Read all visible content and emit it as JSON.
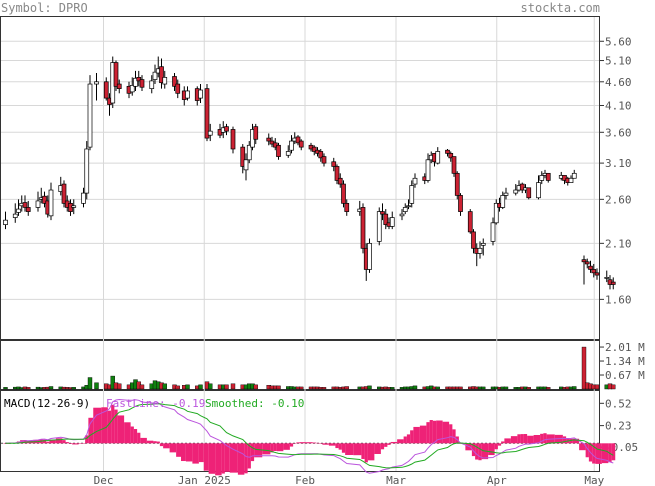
{
  "header": {
    "symbol_label": "Symbol: DPRO",
    "site": "stockta.com"
  },
  "colors": {
    "up": "#108010",
    "down": "#cc2233",
    "macd_hist": "#ee2277",
    "fastline": "#bb55dd",
    "smoothed": "#22aa22",
    "grid": "#d8d8d8"
  },
  "chart_data": [
    {
      "type": "candlestick",
      "title": "",
      "x_dates": [
        "2024-11-01",
        "2024-11-04",
        "2024-11-05",
        "2024-11-06",
        "2024-11-07",
        "2024-11-08",
        "2024-11-11",
        "2024-11-12",
        "2024-11-13",
        "2024-11-14",
        "2024-11-15",
        "2024-11-18",
        "2024-11-19",
        "2024-11-20",
        "2024-11-21",
        "2024-11-22",
        "2024-11-25",
        "2024-11-26",
        "2024-11-27",
        "2024-11-29",
        "2024-12-02",
        "2024-12-03",
        "2024-12-04",
        "2024-12-05",
        "2024-12-06",
        "2024-12-09",
        "2024-12-10",
        "2024-12-11",
        "2024-12-12",
        "2024-12-13",
        "2024-12-16",
        "2024-12-17",
        "2024-12-18",
        "2024-12-19",
        "2024-12-20",
        "2024-12-23",
        "2024-12-24",
        "2024-12-26",
        "2024-12-27",
        "2024-12-30",
        "2024-12-31",
        "2025-01-02",
        "2025-01-03",
        "2025-01-06",
        "2025-01-07",
        "2025-01-08",
        "2025-01-10",
        "2025-01-13",
        "2025-01-14",
        "2025-01-15",
        "2025-01-16",
        "2025-01-17",
        "2025-01-21",
        "2025-01-22",
        "2025-01-23",
        "2025-01-24",
        "2025-01-27",
        "2025-01-28",
        "2025-01-29",
        "2025-01-30",
        "2025-01-31",
        "2025-02-03",
        "2025-02-04",
        "2025-02-05",
        "2025-02-06",
        "2025-02-07",
        "2025-02-10",
        "2025-02-11",
        "2025-02-12",
        "2025-02-13",
        "2025-02-14",
        "2025-02-18",
        "2025-02-19",
        "2025-02-20",
        "2025-02-21",
        "2025-02-24",
        "2025-02-25",
        "2025-02-26",
        "2025-02-27",
        "2025-02-28",
        "2025-03-03",
        "2025-03-04",
        "2025-03-05",
        "2025-03-06",
        "2025-03-07",
        "2025-03-10",
        "2025-03-11",
        "2025-03-12",
        "2025-03-13",
        "2025-03-14",
        "2025-03-17",
        "2025-03-18",
        "2025-03-19",
        "2025-03-20",
        "2025-03-21",
        "2025-03-24",
        "2025-03-25",
        "2025-03-26",
        "2025-03-27",
        "2025-03-28",
        "2025-03-31",
        "2025-04-01",
        "2025-04-02",
        "2025-04-03",
        "2025-04-04",
        "2025-04-07",
        "2025-04-08",
        "2025-04-09",
        "2025-04-10",
        "2025-04-11",
        "2025-04-14",
        "2025-04-15",
        "2025-04-16",
        "2025-04-17",
        "2025-04-21",
        "2025-04-22",
        "2025-04-23",
        "2025-04-24",
        "2025-04-25",
        "2025-04-28",
        "2025-04-29",
        "2025-04-30",
        "2025-05-01",
        "2025-05-02",
        "2025-05-05",
        "2025-05-06",
        "2025-05-07"
      ],
      "x_tick_labels": [
        "Dec",
        "Jan 2025",
        "Feb",
        "Mar",
        "Apr",
        "May"
      ],
      "y_tick_labels": [
        "5.60",
        "5.10",
        "4.60",
        "4.10",
        "3.60",
        "3.10",
        "2.60",
        "2.10",
        "1.60"
      ],
      "y_scale": "log",
      "ylim": [
        1.32,
        6.3
      ],
      "grid": true,
      "close": [
        2.35,
        2.42,
        2.48,
        2.55,
        2.5,
        2.45,
        2.58,
        2.62,
        2.55,
        2.42,
        2.72,
        2.78,
        2.55,
        2.5,
        2.45,
        2.52,
        2.68,
        3.32,
        4.55,
        4.6,
        4.25,
        4.12,
        5.05,
        4.5,
        4.45,
        4.35,
        4.52,
        4.68,
        4.62,
        4.48,
        4.62,
        4.82,
        4.9,
        4.58,
        4.7,
        4.5,
        4.35,
        4.22,
        4.4,
        4.2,
        4.42,
        3.5,
        3.62,
        3.55,
        3.68,
        3.62,
        3.32,
        3.05,
        3.15,
        3.38,
        3.65,
        3.48,
        3.45,
        3.4,
        3.35,
        3.2,
        3.28,
        3.45,
        3.5,
        3.42,
        3.35,
        3.32,
        3.28,
        3.25,
        3.18,
        3.1,
        3.05,
        2.85,
        2.8,
        2.55,
        2.45,
        2.48,
        2.05,
        1.85,
        2.1,
        2.45,
        2.42,
        2.3,
        2.28,
        2.38,
        2.42,
        2.5,
        2.52,
        2.78,
        2.88,
        2.85,
        3.15,
        3.22,
        3.12,
        3.28,
        3.25,
        3.18,
        2.95,
        2.65,
        2.45,
        2.22,
        2.05,
        2.0,
        2.05,
        2.1,
        2.32,
        2.55,
        2.5,
        2.65,
        2.68,
        2.72,
        2.78,
        2.72,
        2.75,
        2.62,
        2.82,
        2.92,
        2.95,
        2.85,
        2.92,
        2.85,
        2.82,
        2.88,
        2.95,
        1.92,
        1.9,
        1.85,
        1.82,
        1.8,
        1.78,
        1.72,
        1.72
      ],
      "open": [
        2.3,
        2.38,
        2.44,
        2.52,
        2.56,
        2.5,
        2.5,
        2.6,
        2.64,
        2.58,
        2.4,
        2.7,
        2.8,
        2.58,
        2.55,
        2.5,
        2.55,
        2.68,
        3.35,
        4.55,
        4.6,
        4.25,
        4.15,
        5.05,
        4.55,
        4.5,
        4.38,
        4.5,
        4.7,
        4.65,
        4.45,
        4.65,
        4.8,
        4.95,
        4.55,
        4.72,
        4.55,
        4.4,
        4.25,
        4.45,
        4.25,
        4.45,
        3.55,
        3.65,
        3.6,
        3.7,
        3.65,
        3.35,
        3.0,
        3.15,
        3.35,
        3.7,
        3.5,
        3.45,
        3.42,
        3.38,
        3.22,
        3.3,
        3.45,
        3.52,
        3.45,
        3.38,
        3.35,
        3.3,
        3.28,
        3.2,
        3.12,
        3.05,
        2.88,
        2.8,
        2.55,
        2.45,
        2.5,
        2.05,
        1.85,
        2.12,
        2.45,
        2.42,
        2.32,
        2.28,
        2.4,
        2.45,
        2.52,
        2.55,
        2.8,
        2.9,
        2.85,
        3.15,
        3.25,
        3.1,
        3.3,
        3.25,
        3.2,
        2.95,
        2.65,
        2.45,
        2.22,
        2.05,
        2.0,
        2.08,
        2.12,
        2.32,
        2.55,
        2.5,
        2.65,
        2.68,
        2.72,
        2.8,
        2.72,
        2.75,
        2.62,
        2.85,
        2.92,
        2.95,
        2.88,
        2.92,
        2.88,
        2.82,
        2.88,
        1.94,
        1.92,
        1.88,
        1.85,
        1.82,
        1.78,
        1.76,
        1.74
      ],
      "high": [
        2.45,
        2.55,
        2.6,
        2.65,
        2.65,
        2.58,
        2.7,
        2.75,
        2.7,
        2.65,
        2.82,
        2.9,
        2.85,
        2.65,
        2.6,
        2.6,
        2.75,
        3.45,
        4.75,
        4.8,
        4.7,
        4.35,
        5.2,
        5.1,
        4.65,
        4.6,
        4.7,
        4.85,
        4.85,
        4.75,
        4.75,
        5.0,
        5.2,
        5.15,
        4.85,
        4.8,
        4.65,
        4.5,
        4.5,
        4.5,
        4.55,
        4.55,
        3.75,
        3.75,
        3.8,
        3.75,
        3.7,
        3.4,
        3.25,
        3.45,
        3.75,
        3.75,
        3.58,
        3.52,
        3.5,
        3.42,
        3.38,
        3.55,
        3.6,
        3.55,
        3.48,
        3.42,
        3.38,
        3.35,
        3.32,
        3.25,
        3.18,
        3.08,
        2.95,
        2.85,
        2.6,
        2.58,
        2.55,
        2.1,
        2.15,
        2.5,
        2.55,
        2.48,
        2.38,
        2.45,
        2.48,
        2.55,
        2.6,
        2.85,
        2.95,
        2.95,
        3.25,
        3.28,
        3.25,
        3.35,
        3.32,
        3.28,
        3.2,
        2.98,
        2.68,
        2.48,
        2.25,
        2.1,
        2.12,
        2.15,
        2.38,
        2.6,
        2.62,
        2.7,
        2.75,
        2.8,
        2.85,
        2.82,
        2.8,
        2.75,
        2.92,
        2.98,
        3.0,
        2.95,
        2.97,
        2.92,
        2.9,
        2.92,
        3.0,
        1.98,
        1.95,
        1.93,
        1.9,
        1.86,
        1.84,
        1.8,
        1.78
      ],
      "low": [
        2.25,
        2.32,
        2.4,
        2.45,
        2.45,
        2.4,
        2.45,
        2.55,
        2.5,
        2.38,
        2.35,
        2.65,
        2.5,
        2.45,
        2.4,
        2.42,
        2.5,
        2.6,
        3.3,
        4.2,
        4.2,
        3.9,
        4.05,
        4.4,
        4.35,
        4.25,
        4.3,
        4.4,
        4.5,
        4.4,
        4.35,
        4.55,
        4.7,
        4.45,
        4.45,
        4.4,
        4.25,
        4.1,
        4.2,
        4.1,
        4.15,
        3.45,
        3.45,
        3.5,
        3.5,
        3.55,
        3.25,
        2.95,
        2.85,
        3.1,
        3.3,
        3.4,
        3.38,
        3.35,
        3.3,
        3.15,
        3.18,
        3.25,
        3.4,
        3.38,
        3.3,
        3.28,
        3.22,
        3.2,
        3.12,
        3.05,
        2.98,
        2.8,
        2.75,
        2.5,
        2.4,
        2.4,
        2.0,
        1.75,
        1.82,
        2.08,
        2.35,
        2.25,
        2.25,
        2.25,
        2.35,
        2.42,
        2.48,
        2.5,
        2.75,
        2.8,
        2.82,
        3.1,
        3.05,
        3.08,
        3.2,
        3.12,
        2.9,
        2.6,
        2.4,
        2.2,
        2.0,
        1.88,
        1.95,
        1.98,
        2.08,
        2.3,
        2.45,
        2.48,
        2.6,
        2.65,
        2.7,
        2.68,
        2.68,
        2.6,
        2.6,
        2.8,
        2.88,
        2.82,
        2.85,
        2.8,
        2.78,
        2.82,
        2.88,
        1.72,
        1.86,
        1.82,
        1.78,
        1.76,
        1.74,
        1.68,
        1.68
      ]
    },
    {
      "type": "bar",
      "title": "",
      "y_tick_labels": [
        "2.01 M",
        "1.34 M",
        "0.67 M"
      ],
      "ylim": [
        0,
        2.3
      ],
      "values": [
        0.08,
        0.09,
        0.1,
        0.07,
        0.1,
        0.08,
        0.09,
        0.07,
        0.08,
        0.09,
        0.12,
        0.1,
        0.09,
        0.08,
        0.07,
        0.08,
        0.1,
        0.18,
        0.55,
        0.3,
        0.25,
        0.2,
        0.62,
        0.3,
        0.25,
        0.2,
        0.3,
        0.45,
        0.35,
        0.2,
        0.25,
        0.4,
        0.35,
        0.3,
        0.25,
        0.2,
        0.15,
        0.18,
        0.2,
        0.15,
        0.2,
        0.35,
        0.25,
        0.2,
        0.2,
        0.2,
        0.25,
        0.2,
        0.2,
        0.25,
        0.25,
        0.2,
        0.18,
        0.15,
        0.15,
        0.15,
        0.12,
        0.12,
        0.1,
        0.1,
        0.1,
        0.1,
        0.1,
        0.1,
        0.08,
        0.08,
        0.1,
        0.1,
        0.08,
        0.1,
        0.12,
        0.1,
        0.1,
        0.12,
        0.15,
        0.1,
        0.09,
        0.1,
        0.08,
        0.08,
        0.08,
        0.1,
        0.1,
        0.12,
        0.15,
        0.1,
        0.12,
        0.15,
        0.1,
        0.1,
        0.1,
        0.1,
        0.1,
        0.1,
        0.1,
        0.1,
        0.12,
        0.1,
        0.1,
        0.1,
        0.1,
        0.1,
        0.08,
        0.1,
        0.1,
        0.08,
        0.08,
        0.1,
        0.1,
        0.08,
        0.1,
        0.1,
        0.1,
        0.08,
        0.1,
        0.08,
        0.1,
        0.1,
        0.12,
        2.01,
        0.3,
        0.25,
        0.2,
        0.2,
        0.2,
        0.25,
        0.2
      ]
    },
    {
      "type": "line",
      "title": "MACD(12-26-9)",
      "y_tick_labels": [
        "0.52",
        "0.23",
        "-0.05"
      ],
      "ylim": [
        -0.36,
        0.68
      ],
      "series": [
        {
          "name": "FastLine",
          "latest": "-0.19"
        },
        {
          "name": "Smoothed",
          "latest": "-0.10"
        }
      ]
    }
  ]
}
